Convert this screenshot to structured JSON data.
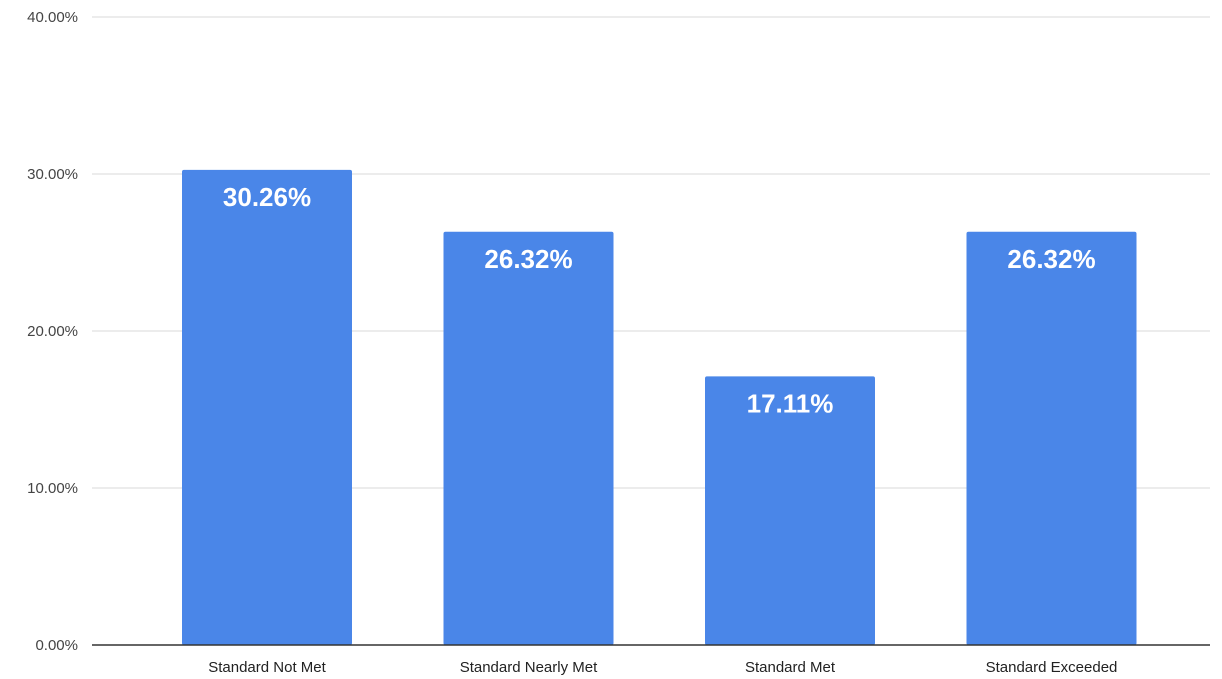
{
  "chart_data": {
    "type": "bar",
    "categories": [
      "Standard Not Met",
      "Standard Nearly Met",
      "Standard Met",
      "Standard Exceeded"
    ],
    "values": [
      30.26,
      26.32,
      17.11,
      26.32
    ],
    "data_labels": [
      "30.26%",
      "26.32%",
      "17.11%",
      "26.32%"
    ],
    "ylim": [
      0,
      40
    ],
    "yticks": [
      0,
      10,
      20,
      30,
      40
    ],
    "ytick_labels": [
      "0.00%",
      "10.00%",
      "20.00%",
      "30.00%",
      "40.00%"
    ],
    "grid": true,
    "legend": "none",
    "bar_color": "#4a86e8"
  }
}
